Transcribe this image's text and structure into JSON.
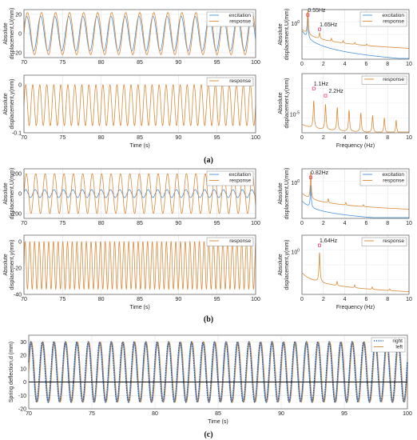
{
  "captions": [
    "(a)",
    "(b)",
    "(c)"
  ],
  "colors": {
    "excitation": "#4a90d9",
    "response": "#d98a3a",
    "right": "#1f5fbf",
    "left": "#c8873a"
  },
  "chart_data": [
    {
      "id": "a-time-U",
      "type": "line",
      "xlabel": "",
      "ylabel": "Absolute displacement,U(mm)",
      "xlim": [
        70,
        100
      ],
      "ylim": [
        -25,
        25
      ],
      "xticks": [
        "70",
        "75",
        "80",
        "85",
        "90",
        "95",
        "100"
      ],
      "yticks": [
        "-20",
        "0",
        "20"
      ],
      "legend": [
        "excitation",
        "response"
      ],
      "legend_position": "top-right",
      "series": [
        {
          "name": "excitation",
          "color": "#4a90d9",
          "freq_hz": 0.55,
          "amplitude": 18
        },
        {
          "name": "response",
          "color": "#d98a3a",
          "freq_hz": 0.55,
          "amplitude": 22
        }
      ]
    },
    {
      "id": "a-time-y",
      "type": "line",
      "xlabel": "Time  (s)",
      "ylabel": "Absolute displacement,y(mm)",
      "xlim": [
        70,
        100
      ],
      "ylim": [
        -0.1,
        0.02
      ],
      "xticks": [
        "70",
        "75",
        "80",
        "85",
        "90",
        "95",
        "100"
      ],
      "yticks": [
        "-0.1",
        "0"
      ],
      "legend": [
        "response"
      ],
      "legend_position": "top-right",
      "series": [
        {
          "name": "response",
          "color": "#d98a3a",
          "freq_hz": 1.1,
          "min": -0.085,
          "max": 0.0
        }
      ]
    },
    {
      "id": "a-freq-U",
      "type": "line",
      "xlabel": "",
      "ylabel": "Absolute displacement,U(mm)",
      "xlim": [
        0,
        10
      ],
      "scale": "log",
      "xticks": [
        "0",
        "2",
        "4",
        "6",
        "8",
        "10"
      ],
      "legend": [
        "excitation",
        "response"
      ],
      "legend_position": "top-right",
      "ytick_labels": [
        {
          "base": "10",
          "exp": "0"
        }
      ],
      "annotations": [
        "0.55Hz",
        "1.65Hz"
      ]
    },
    {
      "id": "a-freq-y",
      "type": "line",
      "xlabel": "Frequency  (Hz)",
      "ylabel": "Absolute displacement,y(mm)",
      "xlim": [
        0,
        10
      ],
      "scale": "log",
      "xticks": [
        "0",
        "2",
        "4",
        "6",
        "8",
        "10"
      ],
      "legend": [
        "response"
      ],
      "legend_position": "top-right",
      "ytick_labels": [
        {
          "base": "10",
          "exp": "-5"
        }
      ],
      "annotations": [
        "1.1Hz",
        "2.2Hz"
      ]
    },
    {
      "id": "b-time-U",
      "type": "line",
      "xlabel": "",
      "ylabel": "Absolute displacement,U(mm)",
      "xlim": [
        70,
        100
      ],
      "ylim": [
        -250,
        250
      ],
      "xticks": [
        "70",
        "75",
        "80",
        "85",
        "90",
        "95",
        "100"
      ],
      "yticks": [
        "-200",
        "0",
        "200"
      ],
      "legend": [
        "excitation",
        "response"
      ],
      "legend_position": "top-right",
      "series": [
        {
          "name": "excitation",
          "color": "#4a90d9",
          "freq_hz": 0.82,
          "amplitude": 40
        },
        {
          "name": "response",
          "color": "#d98a3a",
          "freq_hz": 0.82,
          "amplitude": 200
        }
      ]
    },
    {
      "id": "b-time-y",
      "type": "line",
      "xlabel": "Time  (s)",
      "ylabel": "Absolute displacement,y(mm)",
      "xlim": [
        70,
        100
      ],
      "ylim": [
        -40,
        5
      ],
      "xticks": [
        "70",
        "75",
        "80",
        "85",
        "90",
        "95",
        "100"
      ],
      "yticks": [
        "-40",
        "-20",
        "0"
      ],
      "legend": [
        "response"
      ],
      "legend_position": "top-right",
      "series": [
        {
          "name": "response",
          "color": "#d98a3a",
          "freq_hz": 1.64,
          "min": -36,
          "max": 0
        }
      ]
    },
    {
      "id": "b-freq-U",
      "type": "line",
      "xlabel": "",
      "ylabel": "Absolute displacement,U(mm)",
      "xlim": [
        0,
        10
      ],
      "scale": "log",
      "xticks": [
        "0",
        "2",
        "4",
        "6",
        "8",
        "10"
      ],
      "legend": [
        "excitation",
        "response"
      ],
      "legend_position": "top-right",
      "ytick_labels": [
        {
          "base": "10",
          "exp": "0"
        }
      ],
      "annotations": [
        "0.82Hz"
      ]
    },
    {
      "id": "b-freq-y",
      "type": "line",
      "xlabel": "Frequency  (Hz)",
      "ylabel": "Absolute displacement,y(mm)",
      "xlim": [
        0,
        10
      ],
      "scale": "log",
      "xticks": [
        "0",
        "2",
        "4",
        "6",
        "8",
        "10"
      ],
      "legend": [
        "response"
      ],
      "legend_position": "top-right",
      "ytick_labels": [
        {
          "base": "10",
          "exp": "0"
        }
      ],
      "annotations": [
        "1.64Hz"
      ]
    },
    {
      "id": "c-deflection",
      "type": "line",
      "xlabel": "Time  (s)",
      "ylabel": "Spring deflection,d (mm)",
      "xlim": [
        70,
        100
      ],
      "ylim": [
        -20,
        35
      ],
      "xticks": [
        "70",
        "75",
        "80",
        "85",
        "90",
        "95",
        "100"
      ],
      "yticks": [
        "-20",
        "-10",
        "0",
        "10",
        "20",
        "30"
      ],
      "legend": [
        "right",
        "left"
      ],
      "legend_position": "top-right",
      "series": [
        {
          "name": "right",
          "color": "#1f5fbf",
          "style": "dotted",
          "freq_hz": 1.1,
          "min": -15,
          "max": 30
        },
        {
          "name": "left",
          "color": "#c8873a",
          "freq_hz": 1.1,
          "min": -15,
          "max": 30
        }
      ]
    }
  ]
}
